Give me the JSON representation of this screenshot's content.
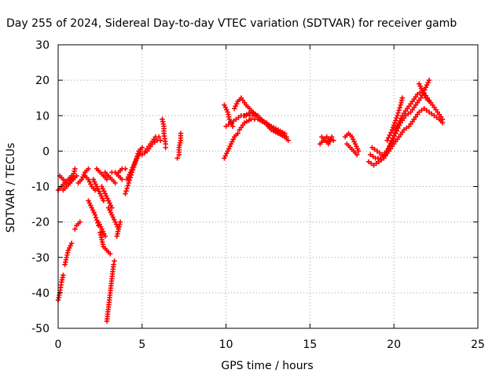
{
  "chart_data": {
    "type": "scatter",
    "title": "Day 255 of 2024, Sidereal Day-to-day VTEC variation (SDTVAR) for receiver gamb",
    "xlabel": "GPS time / hours",
    "ylabel": "SDTVAR / TECUs",
    "xlim": [
      0,
      25
    ],
    "ylim": [
      -50,
      30
    ],
    "x_ticks": [
      0,
      5,
      10,
      15,
      20,
      25
    ],
    "y_ticks": [
      -50,
      -40,
      -30,
      -20,
      -10,
      0,
      10,
      20,
      30
    ],
    "grid": true,
    "marker": "plus",
    "series": [
      {
        "name": "SDTVAR",
        "color": "#ff0000",
        "tracks": [
          [
            [
              0.0,
              -42
            ],
            [
              0.1,
              -40
            ],
            [
              0.2,
              -37
            ],
            [
              0.3,
              -35
            ]
          ],
          [
            [
              0.0,
              -11
            ],
            [
              0.2,
              -10
            ],
            [
              0.4,
              -9
            ],
            [
              0.6,
              -8
            ],
            [
              0.8,
              -7
            ]
          ],
          [
            [
              0.1,
              -7
            ],
            [
              0.3,
              -8
            ],
            [
              0.5,
              -9
            ],
            [
              0.7,
              -9
            ],
            [
              0.9,
              -8
            ],
            [
              1.1,
              -7
            ]
          ],
          [
            [
              0.4,
              -32
            ],
            [
              0.5,
              -30
            ],
            [
              0.6,
              -28
            ],
            [
              0.8,
              -26
            ]
          ],
          [
            [
              0.3,
              -11
            ],
            [
              0.5,
              -10
            ],
            [
              0.7,
              -9
            ],
            [
              0.9,
              -7
            ],
            [
              1.0,
              -5
            ]
          ],
          [
            [
              1.0,
              -22
            ],
            [
              1.1,
              -21
            ],
            [
              1.3,
              -20
            ]
          ],
          [
            [
              1.2,
              -9
            ],
            [
              1.4,
              -8
            ],
            [
              1.6,
              -6
            ],
            [
              1.8,
              -5
            ]
          ],
          [
            [
              1.6,
              -7
            ],
            [
              1.8,
              -8
            ],
            [
              2.0,
              -10
            ],
            [
              2.2,
              -11
            ]
          ],
          [
            [
              1.8,
              -14
            ],
            [
              2.0,
              -16
            ],
            [
              2.2,
              -18
            ],
            [
              2.4,
              -21
            ]
          ],
          [
            [
              2.1,
              -8
            ],
            [
              2.3,
              -10
            ],
            [
              2.5,
              -12
            ],
            [
              2.7,
              -14
            ]
          ],
          [
            [
              2.3,
              -5
            ],
            [
              2.5,
              -6
            ],
            [
              2.7,
              -7
            ],
            [
              2.9,
              -8
            ]
          ],
          [
            [
              2.4,
              -20
            ],
            [
              2.6,
              -22
            ],
            [
              2.8,
              -24
            ]
          ],
          [
            [
              2.5,
              -23
            ],
            [
              2.6,
              -25
            ],
            [
              2.7,
              -27
            ],
            [
              2.9,
              -28
            ],
            [
              3.1,
              -29
            ]
          ],
          [
            [
              2.6,
              -10
            ],
            [
              2.8,
              -12
            ],
            [
              3.0,
              -14
            ],
            [
              3.2,
              -16
            ]
          ],
          [
            [
              2.9,
              -48
            ],
            [
              2.95,
              -46
            ],
            [
              3.0,
              -44
            ],
            [
              3.05,
              -42
            ],
            [
              3.1,
              -40
            ],
            [
              3.15,
              -38
            ],
            [
              3.2,
              -36
            ],
            [
              3.25,
              -34
            ],
            [
              3.3,
              -32
            ],
            [
              3.35,
              -31
            ]
          ],
          [
            [
              2.8,
              -6
            ],
            [
              3.0,
              -7
            ],
            [
              3.2,
              -8
            ],
            [
              3.4,
              -9
            ]
          ],
          [
            [
              3.0,
              -16
            ],
            [
              3.2,
              -18
            ],
            [
              3.4,
              -20
            ],
            [
              3.6,
              -22
            ]
          ],
          [
            [
              3.2,
              -6
            ],
            [
              3.4,
              -6
            ],
            [
              3.6,
              -7
            ],
            [
              3.8,
              -8
            ]
          ],
          [
            [
              3.5,
              -24
            ],
            [
              3.6,
              -22
            ],
            [
              3.7,
              -20
            ]
          ],
          [
            [
              3.6,
              -6
            ],
            [
              3.8,
              -5
            ],
            [
              4.0,
              -5
            ]
          ],
          [
            [
              4.0,
              -12
            ],
            [
              4.2,
              -9
            ],
            [
              4.4,
              -6
            ],
            [
              4.6,
              -3
            ],
            [
              4.8,
              0
            ],
            [
              5.0,
              1
            ]
          ],
          [
            [
              4.1,
              -8
            ],
            [
              4.3,
              -6
            ],
            [
              4.5,
              -4
            ],
            [
              4.7,
              -2
            ],
            [
              4.9,
              0
            ]
          ],
          [
            [
              5.0,
              -1
            ],
            [
              5.3,
              0
            ],
            [
              5.6,
              2
            ],
            [
              5.9,
              3
            ],
            [
              6.1,
              3
            ]
          ],
          [
            [
              5.2,
              0
            ],
            [
              5.5,
              2
            ],
            [
              5.8,
              4
            ],
            [
              6.0,
              4
            ]
          ],
          [
            [
              6.2,
              9
            ],
            [
              6.3,
              7
            ],
            [
              6.3,
              5
            ],
            [
              6.4,
              2
            ],
            [
              6.4,
              1
            ]
          ],
          [
            [
              7.1,
              -2
            ],
            [
              7.2,
              -1
            ],
            [
              7.2,
              1
            ],
            [
              7.3,
              3
            ],
            [
              7.3,
              5
            ]
          ],
          [
            [
              9.9,
              13
            ],
            [
              10.1,
              11
            ],
            [
              10.2,
              9
            ],
            [
              10.4,
              7
            ]
          ],
          [
            [
              9.9,
              -2
            ],
            [
              10.1,
              0
            ],
            [
              10.3,
              2
            ],
            [
              10.5,
              4
            ],
            [
              10.7,
              5
            ]
          ],
          [
            [
              10.0,
              7
            ],
            [
              10.3,
              8
            ],
            [
              10.6,
              9
            ],
            [
              10.9,
              10
            ],
            [
              11.2,
              10
            ],
            [
              11.6,
              10
            ]
          ],
          [
            [
              10.5,
              12
            ],
            [
              10.7,
              14
            ],
            [
              10.9,
              15
            ],
            [
              11.2,
              13
            ],
            [
              11.6,
              11
            ],
            [
              12.0,
              9
            ],
            [
              12.4,
              8
            ],
            [
              12.8,
              6
            ],
            [
              13.2,
              5
            ],
            [
              13.6,
              4
            ]
          ],
          [
            [
              10.8,
              6
            ],
            [
              11.1,
              8
            ],
            [
              11.5,
              9
            ],
            [
              11.9,
              9
            ],
            [
              12.3,
              8
            ],
            [
              12.7,
              6
            ],
            [
              13.1,
              5
            ],
            [
              13.5,
              4
            ],
            [
              13.7,
              3
            ]
          ],
          [
            [
              11.1,
              10
            ],
            [
              11.5,
              11
            ],
            [
              11.9,
              10
            ],
            [
              12.3,
              8
            ],
            [
              12.7,
              7
            ],
            [
              13.1,
              6
            ],
            [
              13.5,
              5
            ]
          ],
          [
            [
              15.6,
              2
            ],
            [
              15.8,
              3
            ],
            [
              16.0,
              4
            ],
            [
              16.2,
              3
            ],
            [
              16.4,
              3
            ]
          ],
          [
            [
              15.7,
              4
            ],
            [
              15.9,
              3
            ],
            [
              16.1,
              2
            ],
            [
              16.3,
              4
            ]
          ],
          [
            [
              17.1,
              4
            ],
            [
              17.3,
              5
            ],
            [
              17.5,
              4
            ],
            [
              17.7,
              2
            ],
            [
              17.9,
              0
            ]
          ],
          [
            [
              17.2,
              2
            ],
            [
              17.4,
              1
            ],
            [
              17.6,
              0
            ],
            [
              17.8,
              -1
            ]
          ],
          [
            [
              18.5,
              -3
            ],
            [
              18.8,
              -4
            ],
            [
              19.1,
              -3
            ],
            [
              19.4,
              -2
            ],
            [
              19.7,
              0
            ],
            [
              20.0,
              2
            ],
            [
              20.3,
              4
            ],
            [
              20.6,
              6
            ],
            [
              20.9,
              7
            ],
            [
              21.2,
              9
            ],
            [
              21.5,
              11
            ],
            [
              21.8,
              12
            ],
            [
              22.1,
              11
            ],
            [
              22.4,
              10
            ],
            [
              22.7,
              9
            ],
            [
              22.9,
              8
            ]
          ],
          [
            [
              18.6,
              -1
            ],
            [
              18.9,
              -2
            ],
            [
              19.2,
              -2
            ],
            [
              19.5,
              -1
            ],
            [
              19.8,
              2
            ],
            [
              20.1,
              5
            ],
            [
              20.4,
              8
            ],
            [
              20.7,
              10
            ],
            [
              21.0,
              11
            ],
            [
              21.3,
              13
            ],
            [
              21.6,
              15
            ],
            [
              21.9,
              18
            ],
            [
              22.1,
              20
            ]
          ],
          [
            [
              18.7,
              1
            ],
            [
              19.0,
              0
            ],
            [
              19.3,
              -1
            ],
            [
              19.6,
              0
            ],
            [
              19.9,
              3
            ],
            [
              20.2,
              7
            ],
            [
              20.5,
              10
            ],
            [
              20.8,
              12
            ],
            [
              21.1,
              14
            ],
            [
              21.4,
              16
            ],
            [
              21.7,
              17
            ],
            [
              22.0,
              15
            ],
            [
              22.3,
              13
            ],
            [
              22.6,
              11
            ],
            [
              22.9,
              9
            ]
          ],
          [
            [
              19.6,
              3
            ],
            [
              19.9,
              6
            ],
            [
              20.2,
              10
            ],
            [
              20.4,
              13
            ],
            [
              20.5,
              15
            ]
          ],
          [
            [
              21.5,
              19
            ],
            [
              21.7,
              17
            ],
            [
              21.9,
              15
            ],
            [
              22.1,
              14
            ]
          ]
        ]
      }
    ]
  }
}
